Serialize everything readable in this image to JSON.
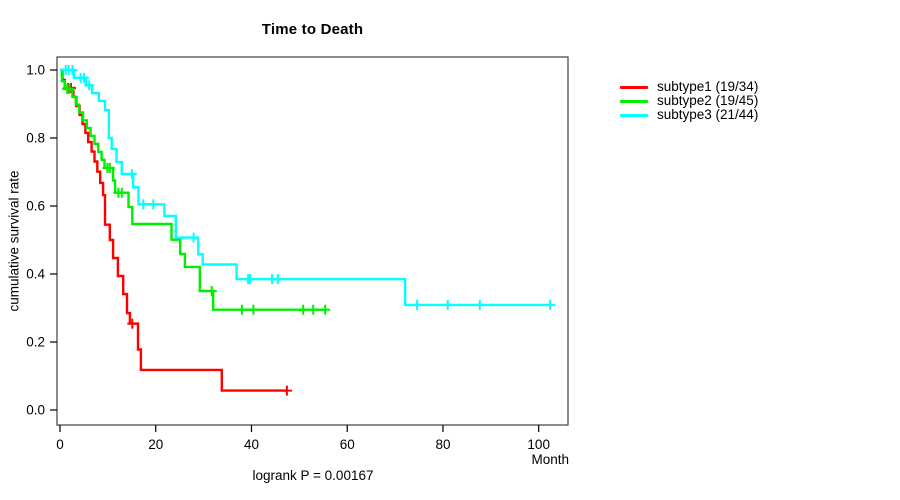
{
  "chart_data": {
    "type": "line",
    "variant": "kaplan-meier-step",
    "title": "Time to Death",
    "xlabel": "Month",
    "ylabel": "cumulative survival rate",
    "annotation": "logrank P = 0.00167",
    "xlim": [
      0,
      106
    ],
    "ylim": [
      0,
      1.04
    ],
    "xticks": [
      0,
      20,
      40,
      60,
      80,
      100
    ],
    "yticks": [
      "0.0",
      "0.2",
      "0.4",
      "0.6",
      "0.8",
      "1.0"
    ],
    "grid": false,
    "legend_position": "right-outside",
    "series": [
      {
        "name": "subtype1",
        "label": "subtype1 (19/34)",
        "color": "#ff0000",
        "end_month": 47.4,
        "points": [
          [
            0,
            1.0
          ],
          [
            0.5,
            0.971
          ],
          [
            1.0,
            0.947
          ],
          [
            2.8,
            0.921
          ],
          [
            3.4,
            0.894
          ],
          [
            4.1,
            0.868
          ],
          [
            4.7,
            0.841
          ],
          [
            5.3,
            0.815
          ],
          [
            5.9,
            0.788
          ],
          [
            6.6,
            0.76
          ],
          [
            7.2,
            0.731
          ],
          [
            7.8,
            0.701
          ],
          [
            8.4,
            0.668
          ],
          [
            9.0,
            0.632
          ],
          [
            9.4,
            0.545
          ],
          [
            10.4,
            0.5
          ],
          [
            11.1,
            0.447
          ],
          [
            12.1,
            0.394
          ],
          [
            13.2,
            0.341
          ],
          [
            14.0,
            0.285
          ],
          [
            14.6,
            0.254
          ],
          [
            16.3,
            0.178
          ],
          [
            16.9,
            0.118
          ],
          [
            33.8,
            0.057
          ]
        ],
        "censors": [
          [
            1.7,
            0.947
          ],
          [
            2.3,
            0.947
          ],
          [
            15.1,
            0.254
          ],
          [
            47.4,
            0.057
          ]
        ]
      },
      {
        "name": "subtype2",
        "label": "subtype2 (19/45)",
        "color": "#00ee00",
        "end_month": 55.8,
        "points": [
          [
            0,
            1.0
          ],
          [
            0.4,
            0.967
          ],
          [
            1.0,
            0.944
          ],
          [
            2.6,
            0.921
          ],
          [
            3.3,
            0.898
          ],
          [
            4.0,
            0.875
          ],
          [
            4.8,
            0.852
          ],
          [
            5.6,
            0.829
          ],
          [
            6.4,
            0.806
          ],
          [
            7.2,
            0.783
          ],
          [
            8.0,
            0.759
          ],
          [
            8.7,
            0.736
          ],
          [
            9.3,
            0.712
          ],
          [
            11.1,
            0.675
          ],
          [
            11.5,
            0.639
          ],
          [
            14.3,
            0.597
          ],
          [
            15.1,
            0.547
          ],
          [
            23.3,
            0.501
          ],
          [
            25.1,
            0.459
          ],
          [
            26.1,
            0.421
          ],
          [
            29.2,
            0.35
          ],
          [
            32.0,
            0.295
          ]
        ],
        "censors": [
          [
            1.5,
            0.944
          ],
          [
            2.0,
            0.944
          ],
          [
            9.9,
            0.712
          ],
          [
            10.4,
            0.712
          ],
          [
            12.2,
            0.639
          ],
          [
            12.9,
            0.639
          ],
          [
            31.7,
            0.35
          ],
          [
            38.0,
            0.295
          ],
          [
            40.4,
            0.295
          ],
          [
            50.8,
            0.295
          ],
          [
            52.9,
            0.295
          ],
          [
            55.4,
            0.295
          ]
        ]
      },
      {
        "name": "subtype3",
        "label": "subtype3 (21/44)",
        "color": "#00ffff",
        "end_month": 102.4,
        "points": [
          [
            0,
            1.0
          ],
          [
            2.9,
            0.977
          ],
          [
            5.4,
            0.955
          ],
          [
            6.7,
            0.932
          ],
          [
            8.1,
            0.909
          ],
          [
            9.4,
            0.882
          ],
          [
            10.2,
            0.8
          ],
          [
            10.8,
            0.768
          ],
          [
            11.8,
            0.729
          ],
          [
            12.9,
            0.694
          ],
          [
            15.3,
            0.655
          ],
          [
            16.4,
            0.605
          ],
          [
            21.8,
            0.571
          ],
          [
            24.2,
            0.507
          ],
          [
            28.9,
            0.458
          ],
          [
            29.8,
            0.428
          ],
          [
            36.9,
            0.385
          ],
          [
            72.1,
            0.309
          ]
        ],
        "censors": [
          [
            1.2,
            1.0
          ],
          [
            1.8,
            1.0
          ],
          [
            2.6,
            1.0
          ],
          [
            4.3,
            0.977
          ],
          [
            5.0,
            0.977
          ],
          [
            6.1,
            0.955
          ],
          [
            15.0,
            0.694
          ],
          [
            17.4,
            0.605
          ],
          [
            19.5,
            0.605
          ],
          [
            27.9,
            0.507
          ],
          [
            39.3,
            0.385
          ],
          [
            39.7,
            0.385
          ],
          [
            44.3,
            0.385
          ],
          [
            45.5,
            0.385
          ],
          [
            74.6,
            0.309
          ],
          [
            81.0,
            0.309
          ],
          [
            87.7,
            0.309
          ],
          [
            102.4,
            0.309
          ]
        ]
      }
    ]
  }
}
